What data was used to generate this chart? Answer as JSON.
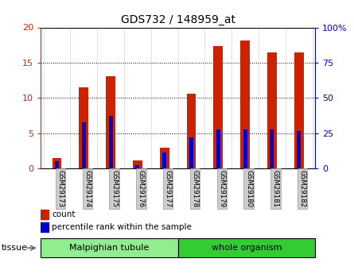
{
  "title": "GDS732 / 148959_at",
  "samples": [
    "GSM29173",
    "GSM29174",
    "GSM29175",
    "GSM29176",
    "GSM29177",
    "GSM29178",
    "GSM29179",
    "GSM29180",
    "GSM29181",
    "GSM29182"
  ],
  "count_values": [
    1.5,
    11.5,
    13.1,
    1.1,
    2.9,
    10.6,
    17.4,
    18.1,
    16.5,
    16.5
  ],
  "percentile_values": [
    5.0,
    32.5,
    37.5,
    2.5,
    11.5,
    22.0,
    27.5,
    27.5,
    27.5,
    26.5
  ],
  "ylim_left": [
    0,
    20
  ],
  "ylim_right": [
    0,
    100
  ],
  "yticks_left": [
    0,
    5,
    10,
    15,
    20
  ],
  "yticks_right": [
    0,
    25,
    50,
    75,
    100
  ],
  "tissue_groups": [
    {
      "label": "Malpighian tubule",
      "start": 0,
      "end": 5,
      "color": "#90EE90"
    },
    {
      "label": "whole organism",
      "start": 5,
      "end": 10,
      "color": "#33CC33"
    }
  ],
  "bar_color": "#CC2200",
  "percentile_color": "#0000CC",
  "bar_width": 0.35,
  "blue_bar_width": 0.15,
  "grid_color": "#000000",
  "background_color": "#ffffff",
  "left_tick_color": "#CC2200",
  "right_tick_color": "#0000CC",
  "tick_label_bg": "#CCCCCC",
  "tick_label_edge": "#999999"
}
